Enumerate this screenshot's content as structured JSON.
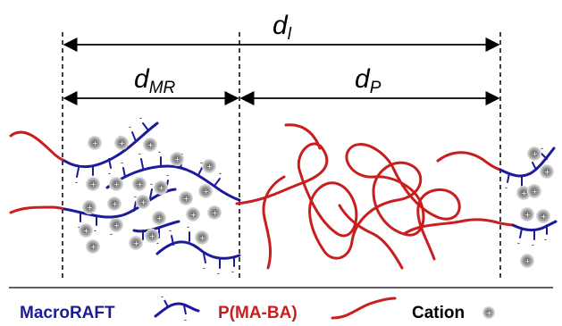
{
  "dimensions": {
    "d_l": {
      "symbol": "d",
      "subscript": "l"
    },
    "d_mr": {
      "symbol": "d",
      "subscript": "MR"
    },
    "d_p": {
      "symbol": "d",
      "subscript": "P"
    }
  },
  "legend": {
    "macroraft": "MacroRAFT",
    "pmaba": "P(MA-BA)",
    "cation": "Cation"
  },
  "colors": {
    "macroraft": "#1c1c9a",
    "pmaba": "#c81e1e",
    "cation_outer": "#c8c8c8",
    "cation_inner": "#6e6e6e",
    "text_black": "#000000"
  }
}
